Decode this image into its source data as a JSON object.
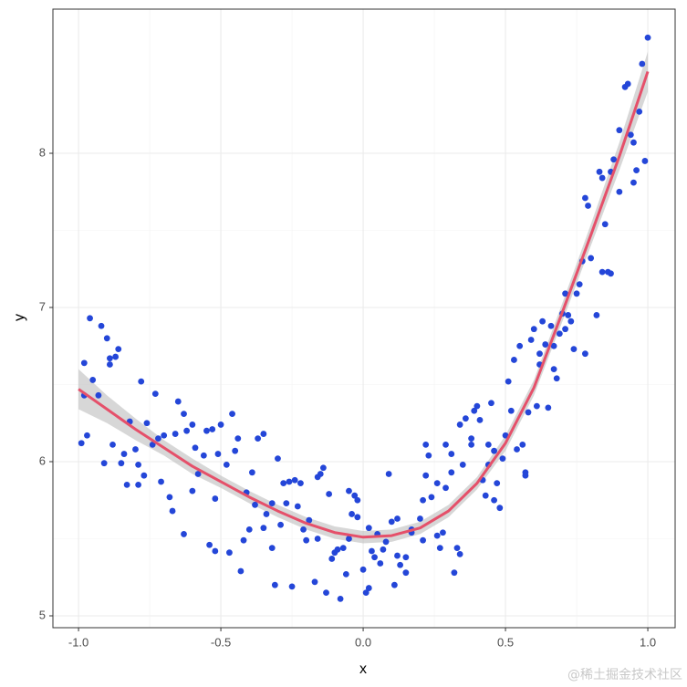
{
  "chart_data": {
    "type": "scatter",
    "x_label": "x",
    "y_label": "y",
    "watermark": "@稀土掘金技术社区",
    "xlim": [
      -1.09,
      1.096
    ],
    "ylim": [
      4.923,
      8.935
    ],
    "xticks": [
      {
        "value": -1,
        "label": "-1.0"
      },
      -0.5,
      {
        "value": 0,
        "label": "0.0"
      },
      0.5,
      {
        "value": 1,
        "label": "1.0"
      }
    ],
    "yticks": [
      5,
      6,
      7,
      8
    ],
    "x_minor_grid": [
      -0.75,
      -0.25,
      0.25,
      0.75
    ],
    "y_minor_grid": [
      5.5,
      6.5,
      7.5
    ],
    "grid": true,
    "color": "#2446d8",
    "x": [
      -0.99,
      -0.98,
      -0.98,
      -0.97,
      -0.96,
      -0.95,
      -0.93,
      -0.92,
      -0.91,
      -0.9,
      -0.89,
      -0.89,
      -0.88,
      -0.87,
      -0.86,
      -0.85,
      -0.84,
      -0.83,
      -0.82,
      -0.8,
      -0.79,
      -0.79,
      -0.78,
      -0.77,
      -0.76,
      -0.74,
      -0.73,
      -0.72,
      -0.71,
      -0.7,
      -0.68,
      -0.67,
      -0.66,
      -0.65,
      -0.63,
      -0.63,
      -0.62,
      -0.6,
      -0.6,
      -0.59,
      -0.58,
      -0.56,
      -0.55,
      -0.54,
      -0.53,
      -0.52,
      -0.52,
      -0.51,
      -0.5,
      -0.48,
      -0.47,
      -0.46,
      -0.45,
      -0.44,
      -0.43,
      -0.42,
      -0.41,
      -0.4,
      -0.39,
      -0.38,
      -0.37,
      -0.35,
      -0.35,
      -0.34,
      -0.32,
      -0.32,
      -0.31,
      -0.3,
      -0.29,
      -0.28,
      -0.27,
      -0.26,
      -0.25,
      -0.24,
      -0.23,
      -0.22,
      -0.21,
      -0.2,
      -0.19,
      -0.17,
      -0.16,
      -0.16,
      -0.15,
      -0.14,
      -0.13,
      -0.12,
      -0.11,
      -0.1,
      -0.09,
      -0.08,
      -0.07,
      -0.06,
      -0.05,
      -0.05,
      -0.04,
      -0.03,
      -0.02,
      -0.02,
      0.0,
      0.01,
      0.02,
      0.02,
      0.03,
      0.04,
      0.05,
      0.06,
      0.07,
      0.08,
      0.09,
      0.1,
      0.11,
      0.12,
      0.12,
      0.13,
      0.15,
      0.15,
      0.17,
      0.17,
      0.2,
      0.21,
      0.21,
      0.22,
      0.22,
      0.23,
      0.24,
      0.26,
      0.26,
      0.27,
      0.28,
      0.29,
      0.29,
      0.31,
      0.31,
      0.32,
      0.33,
      0.34,
      0.34,
      0.35,
      0.36,
      0.38,
      0.38,
      0.39,
      0.4,
      0.41,
      0.42,
      0.43,
      0.44,
      0.44,
      0.45,
      0.46,
      0.46,
      0.47,
      0.48,
      0.49,
      0.5,
      0.51,
      0.52,
      0.53,
      0.54,
      0.55,
      0.56,
      0.57,
      0.57,
      0.58,
      0.59,
      0.6,
      0.61,
      0.62,
      0.62,
      0.63,
      0.64,
      0.65,
      0.66,
      0.67,
      0.67,
      0.68,
      0.69,
      0.7,
      0.71,
      0.71,
      0.72,
      0.73,
      0.74,
      0.75,
      0.76,
      0.77,
      0.78,
      0.78,
      0.79,
      0.8,
      0.82,
      0.83,
      0.84,
      0.84,
      0.85,
      0.86,
      0.87,
      0.87,
      0.88,
      0.9,
      0.9,
      0.92,
      0.93,
      0.94,
      0.95,
      0.95,
      0.96,
      0.97,
      0.98,
      0.99,
      1.0
    ],
    "values": [
      6.12,
      6.64,
      6.43,
      6.17,
      6.93,
      6.53,
      6.43,
      6.88,
      5.99,
      6.8,
      6.63,
      6.67,
      6.11,
      6.68,
      6.73,
      5.99,
      6.05,
      5.85,
      6.26,
      6.08,
      5.98,
      5.85,
      6.52,
      5.91,
      6.25,
      6.11,
      6.44,
      6.15,
      5.87,
      6.17,
      5.77,
      5.68,
      6.18,
      6.39,
      6.31,
      5.53,
      6.2,
      5.81,
      6.24,
      6.09,
      5.92,
      6.04,
      6.2,
      5.46,
      6.21,
      5.76,
      5.42,
      6.05,
      6.24,
      5.98,
      5.41,
      6.31,
      6.07,
      6.15,
      5.29,
      5.49,
      5.8,
      5.56,
      5.93,
      5.72,
      6.15,
      6.18,
      5.57,
      5.66,
      5.44,
      5.73,
      5.2,
      6.02,
      5.59,
      5.86,
      5.73,
      5.87,
      5.19,
      5.88,
      5.71,
      5.86,
      5.56,
      5.49,
      5.62,
      5.22,
      5.5,
      5.9,
      5.92,
      5.96,
      5.15,
      5.79,
      5.37,
      5.41,
      5.43,
      5.11,
      5.44,
      5.27,
      5.5,
      5.81,
      5.66,
      5.78,
      5.64,
      5.75,
      5.3,
      5.15,
      5.57,
      5.18,
      5.42,
      5.38,
      5.53,
      5.34,
      5.43,
      5.48,
      5.92,
      5.61,
      5.2,
      5.63,
      5.39,
      5.33,
      5.28,
      5.38,
      5.56,
      5.54,
      5.63,
      5.49,
      5.75,
      5.91,
      6.11,
      6.04,
      5.77,
      5.52,
      5.86,
      5.44,
      5.54,
      6.11,
      5.83,
      5.93,
      6.05,
      5.28,
      5.44,
      5.4,
      6.24,
      5.98,
      6.28,
      6.15,
      6.11,
      6.33,
      6.36,
      6.27,
      5.88,
      5.78,
      6.11,
      5.98,
      6.38,
      6.07,
      5.75,
      5.86,
      5.7,
      6.02,
      6.17,
      6.52,
      6.33,
      6.66,
      6.08,
      6.75,
      6.11,
      5.91,
      5.93,
      6.32,
      6.79,
      6.86,
      6.36,
      6.63,
      6.7,
      6.91,
      6.76,
      6.35,
      6.88,
      6.75,
      6.6,
      6.54,
      6.83,
      6.96,
      7.09,
      6.86,
      6.95,
      6.91,
      6.73,
      7.09,
      7.15,
      7.3,
      6.7,
      7.71,
      7.66,
      7.32,
      6.95,
      7.88,
      7.84,
      7.23,
      7.54,
      7.23,
      7.22,
      7.88,
      7.96,
      8.15,
      7.75,
      8.43,
      8.45,
      8.12,
      7.81,
      8.07,
      7.89,
      8.27,
      8.58,
      7.95,
      8.75
    ],
    "smooth": {
      "color": "#e5506a",
      "band_color": "#bdbdbd",
      "x": [
        -1.0,
        -0.9,
        -0.8,
        -0.7,
        -0.6,
        -0.5,
        -0.4,
        -0.3,
        -0.2,
        -0.1,
        0.0,
        0.1,
        0.2,
        0.3,
        0.4,
        0.5,
        0.6,
        0.7,
        0.8,
        0.9,
        1.0
      ],
      "y": [
        6.47,
        6.34,
        6.21,
        6.09,
        5.97,
        5.87,
        5.77,
        5.68,
        5.6,
        5.54,
        5.51,
        5.52,
        5.57,
        5.68,
        5.86,
        6.12,
        6.48,
        6.97,
        7.47,
        7.98,
        8.53
      ],
      "lower": [
        6.34,
        6.25,
        6.14,
        6.04,
        5.92,
        5.83,
        5.73,
        5.64,
        5.56,
        5.5,
        5.47,
        5.48,
        5.53,
        5.64,
        5.82,
        6.07,
        6.43,
        6.91,
        7.4,
        7.89,
        8.4
      ],
      "upper": [
        6.6,
        6.43,
        6.28,
        6.14,
        6.02,
        5.91,
        5.81,
        5.72,
        5.64,
        5.58,
        5.55,
        5.56,
        5.61,
        5.72,
        5.9,
        6.17,
        6.53,
        7.03,
        7.54,
        8.07,
        8.66
      ]
    }
  }
}
